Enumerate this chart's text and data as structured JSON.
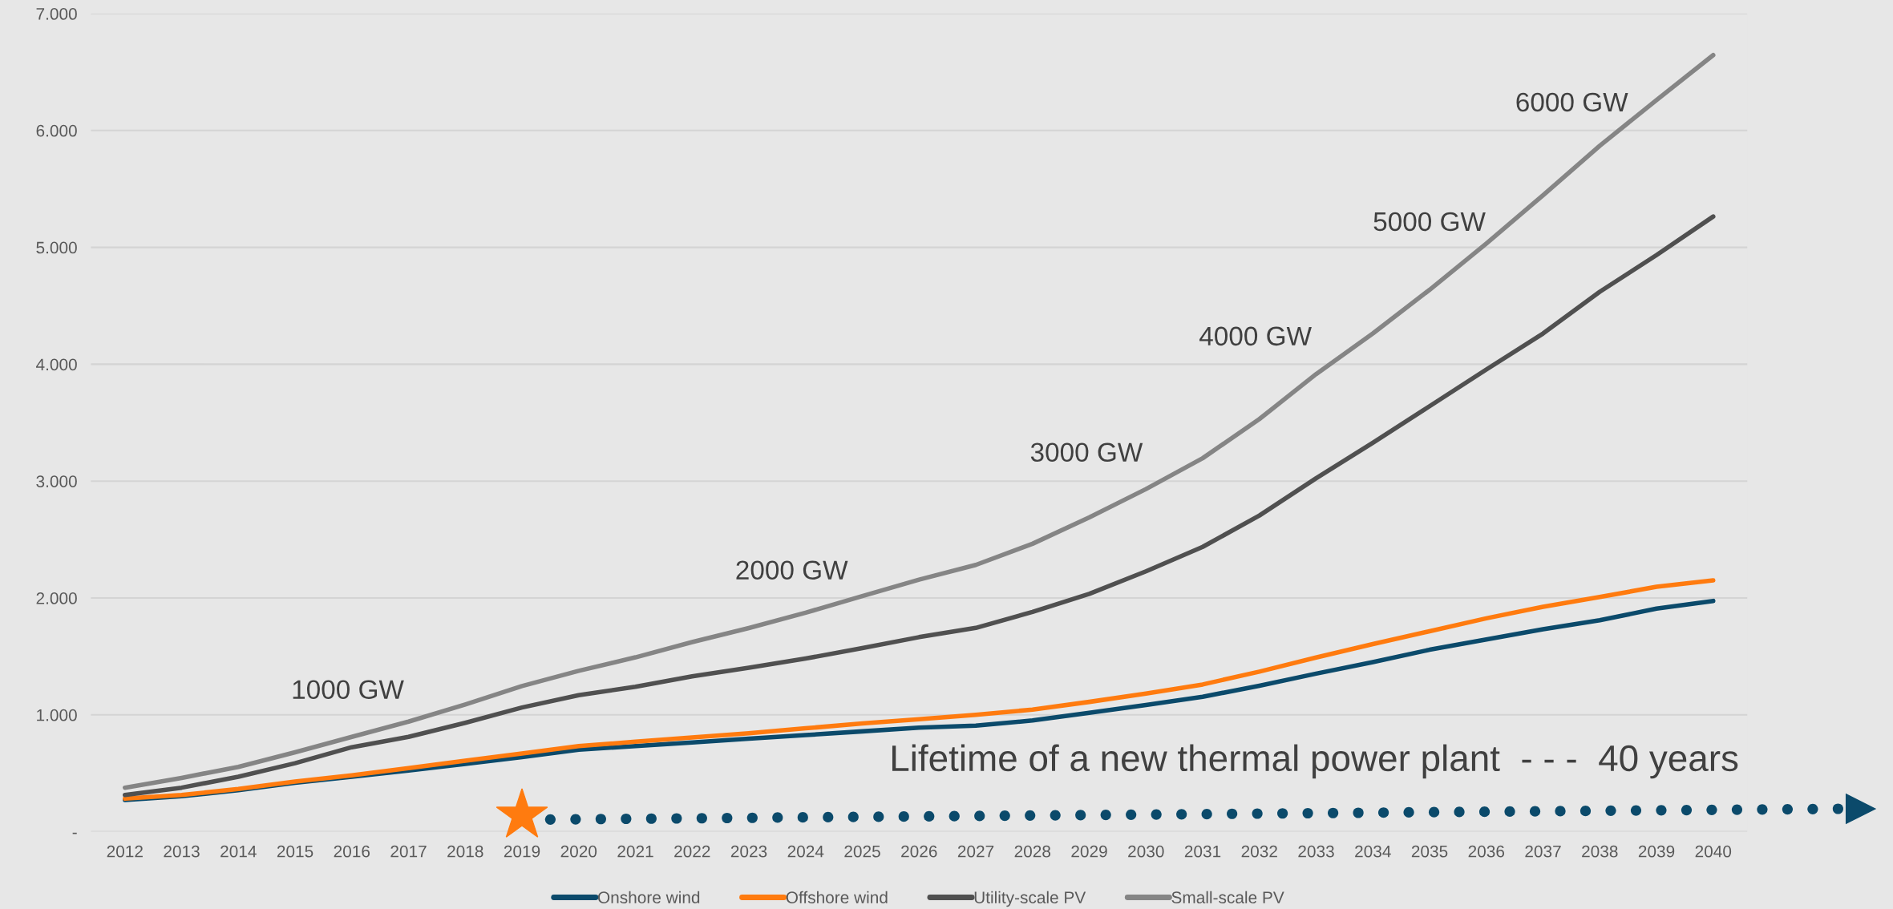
{
  "chart_data": {
    "type": "line",
    "categories": [
      "2012",
      "2013",
      "2014",
      "2015",
      "2016",
      "2017",
      "2018",
      "2019",
      "2020",
      "2021",
      "2022",
      "2023",
      "2024",
      "2025",
      "2026",
      "2027",
      "2028",
      "2029",
      "2030",
      "2031",
      "2032",
      "2033",
      "2034",
      "2035",
      "2036",
      "2037",
      "2038",
      "2039",
      "2040"
    ],
    "series": [
      {
        "name": "Onshore wind",
        "color": "#0b4a6b",
        "values": [
          272,
          304,
          356,
          419,
          471,
          524,
          581,
          639,
          702,
          733,
          764,
          796,
          827,
          859,
          890,
          908,
          952,
          1018,
          1084,
          1155,
          1249,
          1353,
          1452,
          1557,
          1645,
          1733,
          1810,
          1909,
          1975
        ]
      },
      {
        "name": "Offshore wind",
        "color": "#ff7b0f",
        "values": [
          283,
          314,
          366,
          429,
          482,
          545,
          607,
          670,
          733,
          770,
          806,
          843,
          885,
          927,
          963,
          1001,
          1045,
          1111,
          1183,
          1260,
          1370,
          1491,
          1606,
          1716,
          1826,
          1925,
          2008,
          2096,
          2151
        ]
      },
      {
        "name": "Utility-scale PV",
        "color": "#505050",
        "values": [
          314,
          377,
          471,
          586,
          723,
          812,
          932,
          1063,
          1168,
          1241,
          1330,
          1403,
          1482,
          1571,
          1665,
          1744,
          1881,
          2035,
          2228,
          2437,
          2706,
          3025,
          3328,
          3641,
          3955,
          4263,
          4620,
          4934,
          5264
        ]
      },
      {
        "name": "Small-scale PV",
        "color": "#858585",
        "values": [
          377,
          461,
          555,
          680,
          812,
          942,
          1089,
          1246,
          1377,
          1492,
          1623,
          1743,
          1874,
          2016,
          2157,
          2283,
          2464,
          2690,
          2932,
          3196,
          3531,
          3916,
          4263,
          4637,
          5033,
          5446,
          5869,
          6260,
          6645
        ]
      }
    ],
    "ylim": [
      0,
      7000
    ],
    "yticks": [
      {
        "value": 0,
        "label": "-"
      },
      {
        "value": 1000,
        "label": "1.000"
      },
      {
        "value": 2000,
        "label": "2.000"
      },
      {
        "value": 3000,
        "label": "3.000"
      },
      {
        "value": 4000,
        "label": "4.000"
      },
      {
        "value": 5000,
        "label": "5.000"
      },
      {
        "value": 6000,
        "label": "6.000"
      },
      {
        "value": 7000,
        "label": "7.000"
      }
    ],
    "grid": "y",
    "legend": "bottom",
    "annotations": [
      "1000 GW",
      "2000 GW",
      "3000 GW",
      "4000 GW",
      "5000 GW",
      "6000 GW",
      "Lifetime of a new thermal power plant  - - -  40 years"
    ]
  }
}
